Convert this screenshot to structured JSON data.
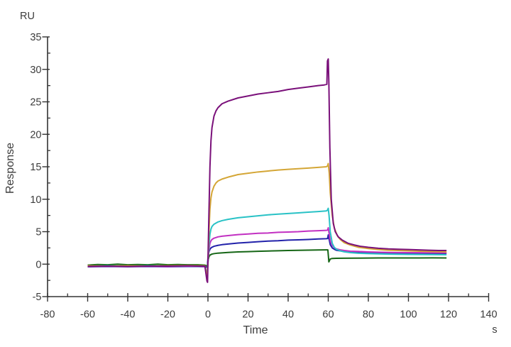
{
  "page": {
    "background": "#ffffff"
  },
  "chart_data": {
    "type": "line",
    "title": "",
    "xlabel": "Time",
    "x_unit": "s",
    "ylabel": "Response",
    "y_unit": "RU",
    "xlim": [
      -80,
      140
    ],
    "ylim": [
      -5,
      35
    ],
    "grid": false,
    "legend": "none",
    "axis_color": "#333333",
    "text_color": "#3c3c3c",
    "x_major_ticks": [
      -80,
      -60,
      -40,
      -20,
      0,
      20,
      40,
      60,
      80,
      100,
      120,
      140
    ],
    "x_minor_ticks": [
      -70,
      -50,
      -30,
      -10,
      10,
      30,
      50,
      70,
      90,
      110,
      130
    ],
    "y_major_ticks": [
      -5,
      0,
      5,
      10,
      15,
      20,
      25,
      30,
      35
    ],
    "y_minor_ticks": [
      -2.5,
      2.5,
      7.5,
      12.5,
      17.5,
      22.5,
      27.5,
      32.5
    ],
    "series": [
      {
        "name": "series-green",
        "color": "#166616",
        "points": [
          [
            -60,
            -0.15
          ],
          [
            -55,
            -0.05
          ],
          [
            -50,
            -0.1
          ],
          [
            -45,
            0.0
          ],
          [
            -40,
            -0.1
          ],
          [
            -35,
            -0.05
          ],
          [
            -30,
            -0.1
          ],
          [
            -25,
            0.0
          ],
          [
            -20,
            -0.1
          ],
          [
            -15,
            -0.05
          ],
          [
            -10,
            -0.1
          ],
          [
            -5,
            -0.1
          ],
          [
            -1.5,
            -0.15
          ],
          [
            -0.3,
            -0.3
          ],
          [
            0,
            0.5
          ],
          [
            0.5,
            1.1
          ],
          [
            1,
            1.4
          ],
          [
            2,
            1.55
          ],
          [
            3,
            1.62
          ],
          [
            5,
            1.7
          ],
          [
            10,
            1.8
          ],
          [
            15,
            1.88
          ],
          [
            20,
            1.93
          ],
          [
            25,
            1.98
          ],
          [
            30,
            2.02
          ],
          [
            35,
            2.06
          ],
          [
            40,
            2.1
          ],
          [
            45,
            2.13
          ],
          [
            50,
            2.16
          ],
          [
            55,
            2.18
          ],
          [
            59,
            2.2
          ],
          [
            59.8,
            2.2
          ],
          [
            60,
            1.5
          ],
          [
            60.3,
            0.35
          ],
          [
            61,
            0.8
          ],
          [
            62,
            0.88
          ],
          [
            64,
            0.9
          ],
          [
            68,
            0.92
          ],
          [
            75,
            0.93
          ],
          [
            85,
            0.95
          ],
          [
            95,
            0.95
          ],
          [
            105,
            0.96
          ],
          [
            112,
            0.97
          ],
          [
            119,
            0.95
          ]
        ]
      },
      {
        "name": "series-blue",
        "color": "#2222AA",
        "points": [
          [
            -60,
            -0.4
          ],
          [
            -50,
            -0.35
          ],
          [
            -40,
            -0.4
          ],
          [
            -30,
            -0.35
          ],
          [
            -20,
            -0.4
          ],
          [
            -10,
            -0.35
          ],
          [
            -5,
            -0.35
          ],
          [
            -1.5,
            -0.4
          ],
          [
            -0.3,
            -0.5
          ],
          [
            0,
            1.0
          ],
          [
            0.5,
            1.9
          ],
          [
            1,
            2.3
          ],
          [
            1.5,
            2.5
          ],
          [
            2,
            2.6
          ],
          [
            3,
            2.75
          ],
          [
            5,
            2.9
          ],
          [
            7,
            3.0
          ],
          [
            10,
            3.1
          ],
          [
            15,
            3.25
          ],
          [
            20,
            3.35
          ],
          [
            25,
            3.45
          ],
          [
            30,
            3.55
          ],
          [
            35,
            3.6
          ],
          [
            40,
            3.7
          ],
          [
            45,
            3.75
          ],
          [
            50,
            3.8
          ],
          [
            55,
            3.88
          ],
          [
            59,
            3.92
          ],
          [
            59.7,
            3.95
          ],
          [
            60,
            4.5
          ],
          [
            60.4,
            3.9
          ],
          [
            61,
            3.0
          ],
          [
            62,
            2.5
          ],
          [
            63,
            2.3
          ],
          [
            64,
            2.15
          ],
          [
            66,
            2.05
          ],
          [
            68,
            1.95
          ],
          [
            71,
            1.88
          ],
          [
            75,
            1.82
          ],
          [
            80,
            1.78
          ],
          [
            90,
            1.72
          ],
          [
            100,
            1.68
          ],
          [
            110,
            1.66
          ],
          [
            119,
            1.65
          ]
        ]
      },
      {
        "name": "series-magenta",
        "color": "#C230C2",
        "points": [
          [
            -60,
            -0.35
          ],
          [
            -50,
            -0.3
          ],
          [
            -40,
            -0.35
          ],
          [
            -30,
            -0.3
          ],
          [
            -20,
            -0.35
          ],
          [
            -10,
            -0.3
          ],
          [
            -5,
            -0.3
          ],
          [
            -1.5,
            -0.35
          ],
          [
            -0.5,
            -2.0
          ],
          [
            0,
            0.1
          ],
          [
            0.5,
            2.2
          ],
          [
            1,
            3.2
          ],
          [
            1.5,
            3.6
          ],
          [
            2,
            3.8
          ],
          [
            3,
            4.0
          ],
          [
            5,
            4.2
          ],
          [
            7,
            4.3
          ],
          [
            10,
            4.4
          ],
          [
            15,
            4.55
          ],
          [
            20,
            4.65
          ],
          [
            25,
            4.75
          ],
          [
            30,
            4.8
          ],
          [
            35,
            4.9
          ],
          [
            40,
            4.95
          ],
          [
            45,
            5.0
          ],
          [
            50,
            5.1
          ],
          [
            55,
            5.15
          ],
          [
            59,
            5.2
          ],
          [
            59.7,
            5.25
          ],
          [
            60,
            5.6
          ],
          [
            60.4,
            4.8
          ],
          [
            61,
            3.6
          ],
          [
            62,
            2.9
          ],
          [
            63,
            2.55
          ],
          [
            64,
            2.35
          ],
          [
            66,
            2.2
          ],
          [
            68,
            2.1
          ],
          [
            71,
            2.0
          ],
          [
            75,
            1.95
          ],
          [
            80,
            1.88
          ],
          [
            90,
            1.8
          ],
          [
            100,
            1.78
          ],
          [
            110,
            1.76
          ],
          [
            119,
            1.75
          ]
        ]
      },
      {
        "name": "series-cyan",
        "color": "#29C2C6",
        "points": [
          [
            -60,
            -0.3
          ],
          [
            -50,
            -0.25
          ],
          [
            -40,
            -0.3
          ],
          [
            -30,
            -0.25
          ],
          [
            -20,
            -0.3
          ],
          [
            -10,
            -0.25
          ],
          [
            -5,
            -0.25
          ],
          [
            -1.5,
            -0.3
          ],
          [
            -0.5,
            -1.8
          ],
          [
            0,
            0.2
          ],
          [
            0.5,
            3.0
          ],
          [
            1,
            4.6
          ],
          [
            1.5,
            5.4
          ],
          [
            2,
            5.8
          ],
          [
            3,
            6.15
          ],
          [
            5,
            6.5
          ],
          [
            7,
            6.7
          ],
          [
            10,
            6.9
          ],
          [
            15,
            7.15
          ],
          [
            20,
            7.3
          ],
          [
            25,
            7.45
          ],
          [
            30,
            7.6
          ],
          [
            35,
            7.7
          ],
          [
            40,
            7.8
          ],
          [
            45,
            7.9
          ],
          [
            50,
            8.0
          ],
          [
            55,
            8.1
          ],
          [
            59,
            8.2
          ],
          [
            59.6,
            8.3
          ],
          [
            60,
            8.6
          ],
          [
            60.4,
            7.5
          ],
          [
            61,
            5.0
          ],
          [
            62,
            3.2
          ],
          [
            63,
            2.6
          ],
          [
            64,
            2.3
          ],
          [
            66,
            2.05
          ],
          [
            68,
            1.9
          ],
          [
            71,
            1.78
          ],
          [
            75,
            1.68
          ],
          [
            80,
            1.62
          ],
          [
            90,
            1.55
          ],
          [
            100,
            1.5
          ],
          [
            110,
            1.47
          ],
          [
            119,
            1.45
          ]
        ]
      },
      {
        "name": "series-gold",
        "color": "#D4A636",
        "points": [
          [
            -60,
            -0.25
          ],
          [
            -50,
            -0.3
          ],
          [
            -40,
            -0.25
          ],
          [
            -30,
            -0.3
          ],
          [
            -20,
            -0.25
          ],
          [
            -10,
            -0.2
          ],
          [
            -5,
            -0.25
          ],
          [
            -1.5,
            -0.25
          ],
          [
            -0.5,
            -2.2
          ],
          [
            0,
            0.3
          ],
          [
            0.5,
            5.0
          ],
          [
            1,
            8.5
          ],
          [
            1.5,
            10.2
          ],
          [
            2,
            11.1
          ],
          [
            3,
            12.0
          ],
          [
            4,
            12.5
          ],
          [
            5,
            12.8
          ],
          [
            7,
            13.1
          ],
          [
            10,
            13.4
          ],
          [
            15,
            13.8
          ],
          [
            20,
            14.0
          ],
          [
            25,
            14.2
          ],
          [
            30,
            14.35
          ],
          [
            35,
            14.5
          ],
          [
            40,
            14.6
          ],
          [
            45,
            14.7
          ],
          [
            50,
            14.8
          ],
          [
            55,
            14.9
          ],
          [
            59,
            15.0
          ],
          [
            59.6,
            15.1
          ],
          [
            60,
            15.5
          ],
          [
            60.5,
            14.0
          ],
          [
            61,
            11.0
          ],
          [
            62,
            7.5
          ],
          [
            63,
            5.6
          ],
          [
            64.5,
            4.4
          ],
          [
            66,
            3.8
          ],
          [
            68,
            3.3
          ],
          [
            71,
            2.95
          ],
          [
            75,
            2.6
          ],
          [
            80,
            2.4
          ],
          [
            85,
            2.25
          ],
          [
            90,
            2.15
          ],
          [
            95,
            2.1
          ],
          [
            100,
            2.05
          ],
          [
            110,
            1.95
          ],
          [
            119,
            1.9
          ]
        ]
      },
      {
        "name": "series-purple",
        "color": "#7A107A",
        "points": [
          [
            -60,
            -0.35
          ],
          [
            -50,
            -0.3
          ],
          [
            -40,
            -0.35
          ],
          [
            -30,
            -0.3
          ],
          [
            -20,
            -0.3
          ],
          [
            -10,
            -0.25
          ],
          [
            -5,
            -0.3
          ],
          [
            -1.5,
            -0.3
          ],
          [
            -0.5,
            -2.6
          ],
          [
            -0.2,
            -2.8
          ],
          [
            0,
            0.5
          ],
          [
            0.5,
            8.0
          ],
          [
            1,
            15.0
          ],
          [
            1.5,
            19.0
          ],
          [
            2,
            21.0
          ],
          [
            3,
            22.8
          ],
          [
            4,
            23.6
          ],
          [
            5,
            24.1
          ],
          [
            7,
            24.7
          ],
          [
            10,
            25.1
          ],
          [
            15,
            25.6
          ],
          [
            20,
            25.9
          ],
          [
            25,
            26.2
          ],
          [
            30,
            26.4
          ],
          [
            35,
            26.6
          ],
          [
            40,
            26.9
          ],
          [
            45,
            27.1
          ],
          [
            50,
            27.3
          ],
          [
            55,
            27.5
          ],
          [
            58,
            27.6
          ],
          [
            59.3,
            27.7
          ],
          [
            59.6,
            31.3
          ],
          [
            60,
            31.6
          ],
          [
            60.3,
            28.0
          ],
          [
            60.8,
            18.0
          ],
          [
            61.5,
            10.0
          ],
          [
            62.5,
            6.3
          ],
          [
            63.5,
            5.0
          ],
          [
            65,
            4.2
          ],
          [
            67,
            3.7
          ],
          [
            70,
            3.2
          ],
          [
            73,
            2.95
          ],
          [
            76,
            2.75
          ],
          [
            80,
            2.6
          ],
          [
            85,
            2.45
          ],
          [
            90,
            2.35
          ],
          [
            95,
            2.3
          ],
          [
            100,
            2.25
          ],
          [
            105,
            2.2
          ],
          [
            110,
            2.15
          ],
          [
            115,
            2.1
          ],
          [
            119,
            2.1
          ]
        ]
      }
    ]
  }
}
